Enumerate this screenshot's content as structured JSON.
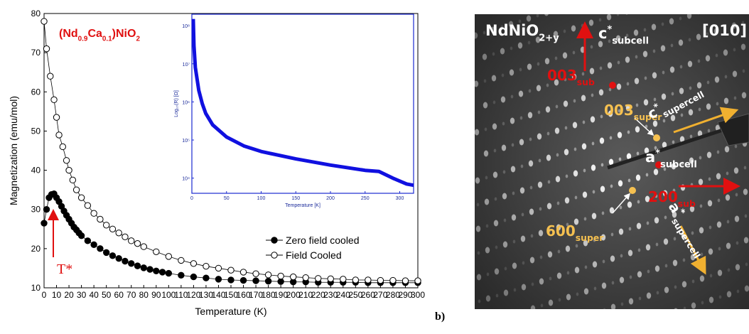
{
  "chart_data": [
    {
      "type": "scatter",
      "title_parts": [
        {
          "text": "(Nd"
        },
        {
          "text": "0.9",
          "sub": true
        },
        {
          "text": "Ca"
        },
        {
          "text": "0.1",
          "sub": true
        },
        {
          "text": ")NiO"
        },
        {
          "text": "2",
          "sub": true
        }
      ],
      "x_label": "Temperature (K)",
      "y_label": "Magnetization (emu/mol)",
      "annotation": "T*",
      "xlim": [
        0,
        300
      ],
      "ylim": [
        10,
        80
      ],
      "xticks": [
        0,
        10,
        20,
        30,
        40,
        50,
        60,
        70,
        80,
        90,
        100,
        110,
        120,
        130,
        140,
        150,
        160,
        170,
        180,
        190,
        200,
        210,
        220,
        230,
        240,
        250,
        260,
        270,
        280,
        290,
        300
      ],
      "yticks": [
        10,
        20,
        30,
        40,
        50,
        60,
        70,
        80
      ],
      "legend": "lower right",
      "series": [
        {
          "name": "Zero field cooled",
          "color": "#000000",
          "filled": true,
          "x": [
            0,
            2,
            4,
            6,
            8,
            10,
            12,
            14,
            16,
            18,
            20,
            22,
            24,
            26,
            28,
            30,
            35,
            40,
            45,
            50,
            55,
            60,
            65,
            70,
            75,
            80,
            85,
            90,
            95,
            100,
            110,
            120,
            130,
            140,
            150,
            160,
            170,
            180,
            190,
            200,
            210,
            220,
            230,
            240,
            250,
            260,
            270,
            280,
            290,
            300
          ],
          "values": [
            26.5,
            30,
            33,
            33.8,
            34,
            33,
            32,
            30.8,
            29.6,
            28.5,
            27.5,
            26.5,
            25.5,
            24.8,
            24,
            23.3,
            22,
            21,
            20,
            19,
            18.2,
            17.5,
            16.8,
            16.2,
            15.6,
            15.1,
            14.7,
            14.3,
            14,
            13.7,
            13.2,
            12.8,
            12.5,
            12.2,
            12,
            11.9,
            11.8,
            11.7,
            11.6,
            11.5,
            11.5,
            11.4,
            11.4,
            11.4,
            11.4,
            11.3,
            11.3,
            11.3,
            11.3,
            11.3
          ]
        },
        {
          "name": "Field Cooled",
          "color": "#000000",
          "filled": false,
          "x": [
            0,
            2,
            5,
            8,
            10,
            12,
            15,
            18,
            20,
            23,
            26,
            30,
            35,
            40,
            45,
            50,
            55,
            60,
            65,
            70,
            75,
            80,
            90,
            100,
            110,
            120,
            130,
            140,
            150,
            160,
            170,
            180,
            190,
            200,
            210,
            220,
            230,
            240,
            250,
            260,
            270,
            280,
            290,
            300
          ],
          "values": [
            78,
            71,
            64,
            58,
            53.5,
            49,
            46,
            42.5,
            40,
            37.5,
            35,
            33,
            31,
            29,
            27.5,
            26,
            25,
            24,
            23,
            22,
            21.3,
            20.5,
            19.2,
            18,
            17,
            16.2,
            15.5,
            15,
            14.5,
            14,
            13.6,
            13.3,
            13,
            12.8,
            12.6,
            12.4,
            12.3,
            12.2,
            12,
            12,
            11.9,
            11.9,
            11.8,
            11.8
          ]
        }
      ]
    },
    {
      "type": "line",
      "x_label": "Temperature [K]",
      "y_label": "Log₁₀(R) [Ω]",
      "log_y": true,
      "xlim": [
        0,
        320
      ],
      "ylim": [
        4000,
        200000000
      ],
      "xticks": [
        0,
        50,
        100,
        150,
        200,
        250,
        300
      ],
      "yticks": [
        {
          "value": 10000,
          "label": "10⁴"
        },
        {
          "value": 100000,
          "label": "10⁵"
        },
        {
          "value": 1000000,
          "label": "10⁶"
        },
        {
          "value": 10000000,
          "label": "10⁷"
        },
        {
          "value": 100000000,
          "label": "10⁸"
        }
      ],
      "series": [
        {
          "name": null,
          "color": "#1010e0",
          "x": [
            2,
            3,
            5,
            10,
            15,
            20,
            30,
            50,
            75,
            100,
            150,
            200,
            250,
            270,
            290,
            310,
            320
          ],
          "values": [
            150000000,
            30000000,
            8000000,
            2000000,
            900000,
            500000,
            250000,
            120000,
            70000,
            50000,
            32000,
            22000,
            16000,
            15000,
            10000,
            7000,
            6500
          ]
        }
      ]
    }
  ],
  "panel_label": "b)",
  "diffraction": {
    "labels": [
      [
        {
          "text": "NdNiO"
        },
        {
          "text": "2+y",
          "sub": true
        }
      ],
      [
        {
          "text": "[010]"
        }
      ],
      [
        {
          "text": "c"
        },
        {
          "text": "*",
          "sup": true
        },
        {
          "text": "subcell",
          "sub": true
        }
      ],
      [
        {
          "text": "003"
        },
        {
          "text": "sub",
          "sub": true
        }
      ],
      [
        {
          "text": "003"
        },
        {
          "text": "super",
          "sub": true
        }
      ],
      [
        {
          "text": "c"
        },
        {
          "text": "*",
          "sup": true
        },
        {
          "text": "supercell",
          "sub": true
        }
      ],
      [
        {
          "text": "a"
        },
        {
          "text": "*",
          "sup": true
        },
        {
          "text": "subcell",
          "sub": true
        }
      ],
      [
        {
          "text": "200"
        },
        {
          "text": "sub",
          "sub": true
        }
      ],
      [
        {
          "text": "600"
        },
        {
          "text": "super",
          "sub": true
        }
      ],
      [
        {
          "text": "a"
        },
        {
          "text": "*",
          "sup": true
        },
        {
          "text": "supercell",
          "sub": true
        }
      ]
    ]
  }
}
